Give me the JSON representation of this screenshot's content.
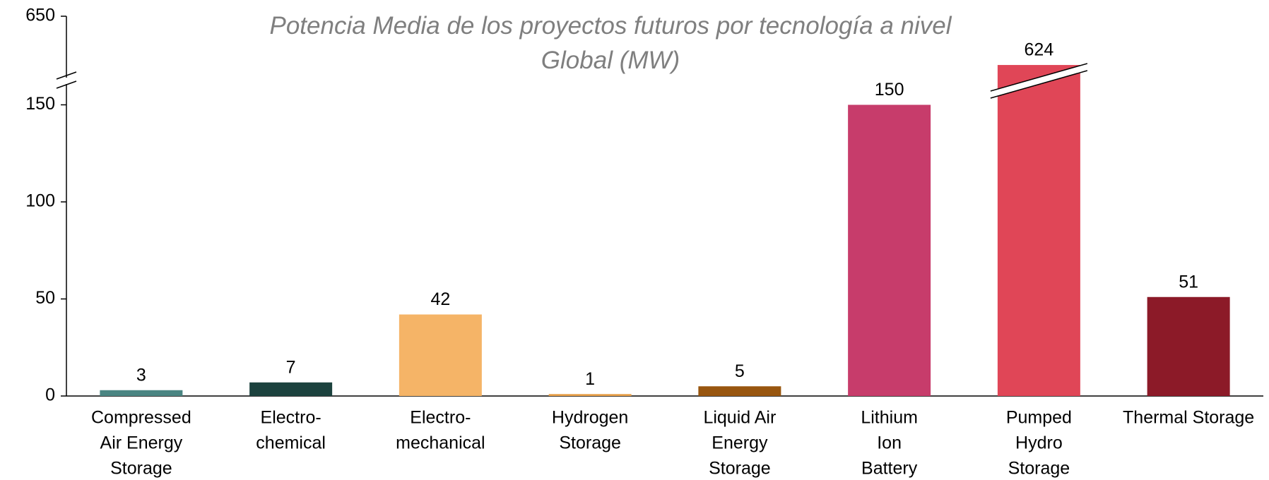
{
  "chart_data": {
    "type": "bar",
    "title": "Potencia Media de los proyectos futuros por tecnología a nivel Global (MW)",
    "categories": [
      [
        "Compressed",
        "Air Energy",
        "Storage"
      ],
      [
        "Electro-",
        "chemical"
      ],
      [
        "Electro-",
        "mechanical"
      ],
      [
        "Hydrogen",
        "Storage"
      ],
      [
        "Liquid Air",
        "Energy",
        "Storage"
      ],
      [
        "Lithium",
        "Ion",
        "Battery"
      ],
      [
        "Pumped",
        "Hydro",
        "Storage"
      ],
      [
        "Thermal Storage"
      ]
    ],
    "values": [
      3,
      7,
      42,
      1,
      5,
      150,
      624,
      51
    ],
    "colors": [
      "#4a8582",
      "#1c423e",
      "#f5b467",
      "#e8a04a",
      "#98560f",
      "#c73c6b",
      "#e04657",
      "#8c1a28"
    ],
    "ylim": [
      0,
      650
    ],
    "yticks": [
      0,
      50,
      100,
      150,
      650
    ],
    "axis_break": [
      160,
      618
    ]
  }
}
